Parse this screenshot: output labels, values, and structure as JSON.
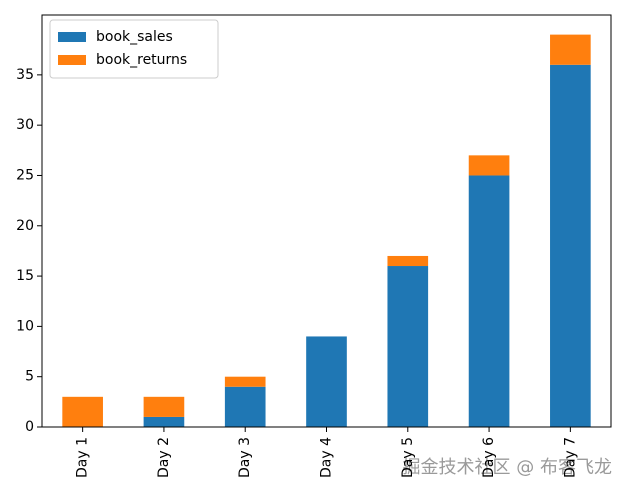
{
  "chart_data": {
    "type": "stacked_bar",
    "categories": [
      "Day 1",
      "Day 2",
      "Day 3",
      "Day 4",
      "Day 5",
      "Day 6",
      "Day 7"
    ],
    "series": [
      {
        "name": "book_sales",
        "color": "#1f77b4",
        "values": [
          0,
          1,
          4,
          9,
          16,
          25,
          36
        ]
      },
      {
        "name": "book_returns",
        "color": "#ff7f0e",
        "values": [
          3,
          2,
          1,
          0,
          1,
          2,
          3
        ]
      }
    ],
    "ylim": [
      0,
      40.95
    ],
    "yticks": [
      0,
      5,
      10,
      15,
      20,
      25,
      30,
      35
    ],
    "grid": false,
    "legend": "upper left"
  },
  "watermark": "掘金技术社区 @ 布客飞龙"
}
